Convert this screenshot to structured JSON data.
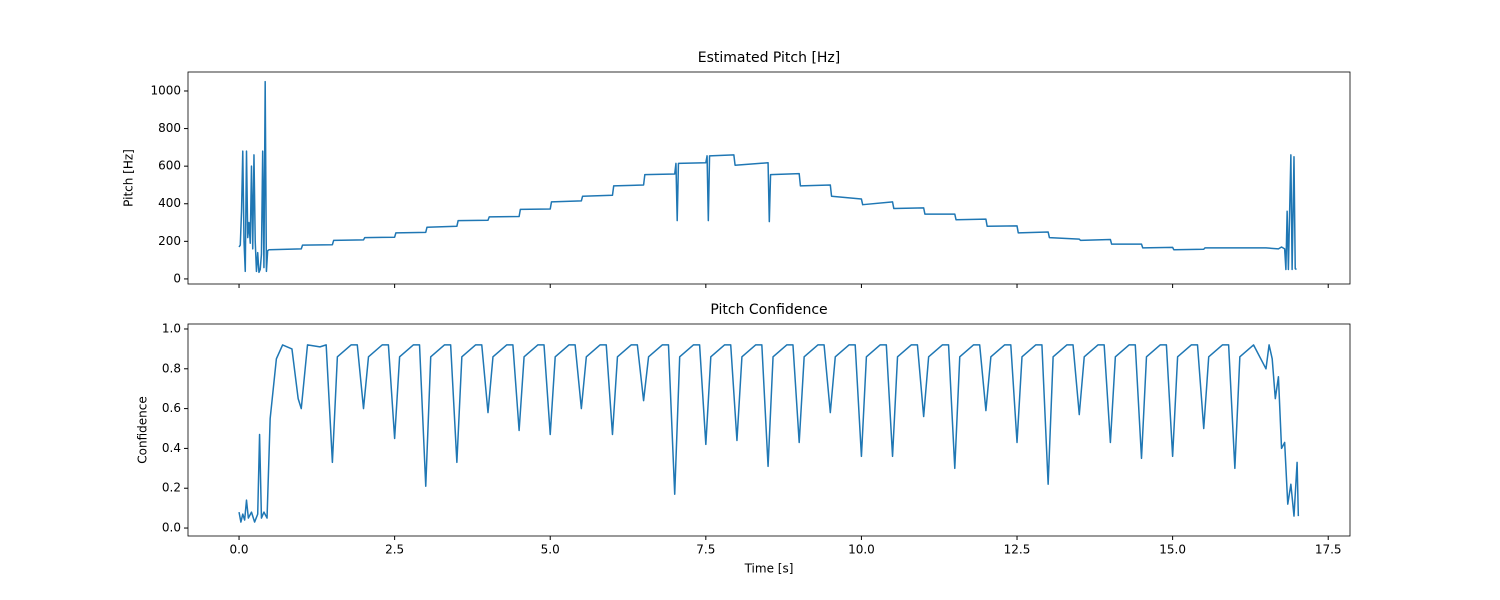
{
  "chart_data": [
    {
      "type": "line",
      "title": "Estimated Pitch [Hz]",
      "ylabel": "Pitch [Hz]",
      "color": "#1f77b4",
      "xlim": [
        -0.82,
        17.85
      ],
      "ylim": [
        -27,
        1101
      ],
      "yticks": [
        0,
        200,
        400,
        600,
        800,
        1000
      ],
      "x": [
        0,
        0.02,
        0.04,
        0.06,
        0.08,
        0.1,
        0.12,
        0.14,
        0.16,
        0.18,
        0.2,
        0.22,
        0.24,
        0.26,
        0.28,
        0.3,
        0.32,
        0.34,
        0.36,
        0.38,
        0.4,
        0.42,
        0.44,
        0.46,
        0.48,
        1.0,
        1.02,
        1.5,
        1.52,
        2.0,
        2.02,
        2.5,
        2.52,
        3.0,
        3.02,
        3.5,
        3.52,
        4.0,
        4.02,
        4.5,
        4.52,
        5.0,
        5.02,
        5.5,
        5.52,
        6.0,
        6.02,
        6.5,
        6.52,
        7.0,
        7.02,
        7.04,
        7.06,
        7.5,
        7.52,
        7.54,
        7.56,
        7.95,
        7.97,
        8.5,
        8.52,
        8.54,
        9.0,
        9.02,
        9.5,
        9.52,
        10.0,
        10.02,
        10.5,
        10.52,
        11.0,
        11.02,
        11.5,
        11.52,
        12.0,
        12.02,
        12.5,
        12.52,
        13.0,
        13.02,
        13.5,
        13.52,
        14.0,
        14.02,
        14.5,
        14.52,
        15.0,
        15.02,
        15.5,
        15.52,
        16.0,
        16.5,
        16.7,
        16.75,
        16.8,
        16.82,
        16.84,
        16.86,
        16.9,
        16.92,
        16.95,
        16.97,
        16.99
      ],
      "values": [
        170,
        180,
        360,
        680,
        200,
        40,
        680,
        220,
        300,
        190,
        600,
        160,
        660,
        200,
        40,
        140,
        35,
        50,
        130,
        680,
        60,
        1050,
        40,
        150,
        155,
        160,
        180,
        182,
        205,
        208,
        220,
        222,
        245,
        248,
        275,
        280,
        310,
        312,
        330,
        332,
        370,
        372,
        410,
        415,
        440,
        445,
        495,
        500,
        555,
        558,
        615,
        310,
        615,
        618,
        655,
        310,
        655,
        660,
        605,
        618,
        305,
        555,
        560,
        495,
        500,
        440,
        425,
        395,
        410,
        375,
        378,
        345,
        345,
        315,
        318,
        280,
        282,
        245,
        250,
        220,
        212,
        205,
        210,
        185,
        185,
        165,
        168,
        155,
        158,
        165,
        165,
        165,
        160,
        170,
        160,
        50,
        360,
        50,
        660,
        50,
        650,
        55,
        50
      ]
    },
    {
      "type": "line",
      "title": "Pitch Confidence",
      "ylabel": "Confidence",
      "xlabel": "Time [s]",
      "color": "#1f77b4",
      "xlim": [
        -0.82,
        17.85
      ],
      "ylim": [
        -0.04,
        1.025
      ],
      "yticks": [
        {
          "value": 0,
          "label": "0.0"
        },
        {
          "value": 0.2,
          "label": "0.2"
        },
        {
          "value": 0.4,
          "label": "0.4"
        },
        {
          "value": 0.6,
          "label": "0.6"
        },
        {
          "value": 0.8,
          "label": "0.8"
        },
        {
          "value": 1,
          "label": "1.0"
        }
      ],
      "xticks": [
        {
          "value": 0,
          "label": "0.0"
        },
        2.5,
        {
          "value": 5,
          "label": "5.0"
        },
        7.5,
        {
          "value": 10,
          "label": "10.0"
        },
        12.5,
        {
          "value": 15,
          "label": "15.0"
        },
        17.5
      ],
      "x": [
        0,
        0.03,
        0.06,
        0.09,
        0.12,
        0.15,
        0.2,
        0.25,
        0.3,
        0.33,
        0.36,
        0.4,
        0.45,
        0.5,
        0.6,
        0.7,
        0.85,
        0.95,
        1.0,
        1.1,
        1.3,
        1.4,
        1.5,
        1.58,
        1.8,
        1.9,
        2.0,
        2.08,
        2.3,
        2.4,
        2.5,
        2.58,
        2.8,
        2.9,
        3.0,
        3.08,
        3.3,
        3.4,
        3.5,
        3.58,
        3.8,
        3.9,
        4.0,
        4.08,
        4.3,
        4.4,
        4.5,
        4.58,
        4.8,
        4.9,
        5.0,
        5.08,
        5.3,
        5.4,
        5.5,
        5.58,
        5.8,
        5.9,
        6.0,
        6.08,
        6.3,
        6.4,
        6.5,
        6.58,
        6.8,
        6.9,
        7.0,
        7.08,
        7.3,
        7.4,
        7.5,
        7.58,
        7.8,
        7.9,
        8.0,
        8.08,
        8.3,
        8.4,
        8.5,
        8.58,
        8.8,
        8.9,
        9.0,
        9.08,
        9.3,
        9.4,
        9.5,
        9.58,
        9.8,
        9.9,
        10.0,
        10.08,
        10.3,
        10.4,
        10.5,
        10.58,
        10.8,
        10.9,
        11.0,
        11.08,
        11.3,
        11.4,
        11.5,
        11.58,
        11.8,
        11.9,
        12.0,
        12.08,
        12.3,
        12.4,
        12.5,
        12.58,
        12.8,
        12.9,
        13.0,
        13.08,
        13.3,
        13.4,
        13.5,
        13.58,
        13.8,
        13.9,
        14.0,
        14.08,
        14.3,
        14.4,
        14.5,
        14.58,
        14.8,
        14.9,
        15.0,
        15.08,
        15.3,
        15.4,
        15.5,
        15.58,
        15.8,
        15.9,
        16.0,
        16.08,
        16.3,
        16.5,
        16.55,
        16.6,
        16.65,
        16.7,
        16.75,
        16.8,
        16.85,
        16.9,
        16.95,
        17.0,
        17.02
      ],
      "values": [
        0.08,
        0.03,
        0.07,
        0.04,
        0.14,
        0.05,
        0.08,
        0.03,
        0.07,
        0.47,
        0.05,
        0.08,
        0.05,
        0.55,
        0.85,
        0.92,
        0.9,
        0.65,
        0.6,
        0.92,
        0.91,
        0.92,
        0.33,
        0.86,
        0.92,
        0.92,
        0.6,
        0.86,
        0.92,
        0.92,
        0.45,
        0.86,
        0.92,
        0.92,
        0.21,
        0.86,
        0.92,
        0.92,
        0.33,
        0.86,
        0.92,
        0.92,
        0.58,
        0.86,
        0.92,
        0.92,
        0.49,
        0.86,
        0.92,
        0.92,
        0.47,
        0.86,
        0.92,
        0.92,
        0.6,
        0.86,
        0.92,
        0.92,
        0.47,
        0.86,
        0.92,
        0.92,
        0.64,
        0.86,
        0.92,
        0.92,
        0.17,
        0.86,
        0.92,
        0.92,
        0.42,
        0.86,
        0.92,
        0.92,
        0.44,
        0.86,
        0.92,
        0.92,
        0.31,
        0.86,
        0.92,
        0.92,
        0.43,
        0.86,
        0.92,
        0.92,
        0.58,
        0.86,
        0.92,
        0.92,
        0.36,
        0.86,
        0.92,
        0.92,
        0.36,
        0.86,
        0.92,
        0.92,
        0.56,
        0.86,
        0.92,
        0.92,
        0.3,
        0.86,
        0.92,
        0.92,
        0.59,
        0.86,
        0.92,
        0.92,
        0.43,
        0.86,
        0.92,
        0.92,
        0.22,
        0.86,
        0.92,
        0.92,
        0.57,
        0.86,
        0.92,
        0.92,
        0.43,
        0.86,
        0.92,
        0.92,
        0.35,
        0.86,
        0.92,
        0.92,
        0.36,
        0.86,
        0.92,
        0.92,
        0.5,
        0.86,
        0.92,
        0.92,
        0.3,
        0.86,
        0.92,
        0.8,
        0.92,
        0.85,
        0.65,
        0.76,
        0.4,
        0.43,
        0.12,
        0.22,
        0.06,
        0.33,
        0.06
      ]
    }
  ]
}
